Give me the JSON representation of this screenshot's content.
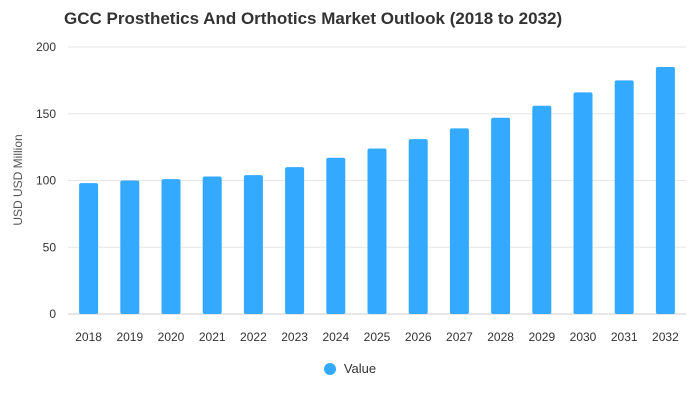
{
  "chart_data": {
    "type": "bar",
    "title": "GCC Prosthetics And Orthotics Market Outlook (2018 to 2032)",
    "xlabel": "",
    "ylabel": "USD USD Million",
    "categories": [
      "2018",
      "2019",
      "2020",
      "2021",
      "2022",
      "2023",
      "2024",
      "2025",
      "2026",
      "2027",
      "2028",
      "2029",
      "2030",
      "2031",
      "2032"
    ],
    "series": [
      {
        "name": "Value",
        "color": "#33aaff",
        "values": [
          98,
          100,
          101,
          103,
          104,
          110,
          117,
          124,
          131,
          139,
          147,
          156,
          166,
          175,
          185
        ]
      }
    ],
    "ylim": [
      0,
      200
    ],
    "yticks": [
      0,
      50,
      100,
      150,
      200
    ],
    "grid": true,
    "legend_position": "bottom"
  }
}
